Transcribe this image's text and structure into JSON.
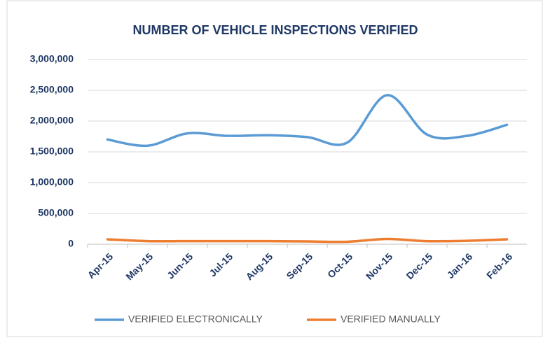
{
  "chart_data": {
    "type": "line",
    "title": "NUMBER OF VEHICLE INSPECTIONS VERIFIED",
    "categories": [
      "Apr-15",
      "May-15",
      "Jun-15",
      "Jul-15",
      "Aug-15",
      "Sep-15",
      "Oct-15",
      "Nov-15",
      "Dec-15",
      "Jan-16",
      "Feb-16"
    ],
    "series": [
      {
        "name": "VERIFIED ELECTRONICALLY",
        "color": "#5b9bd5",
        "values": [
          1700000,
          1600000,
          1800000,
          1760000,
          1770000,
          1740000,
          1650000,
          2420000,
          1780000,
          1760000,
          1940000
        ]
      },
      {
        "name": "VERIFIED MANUALLY",
        "color": "#ed7d31",
        "values": [
          80000,
          50000,
          50000,
          50000,
          50000,
          45000,
          40000,
          85000,
          50000,
          55000,
          80000
        ]
      }
    ],
    "ylim": [
      0,
      3000000
    ],
    "yticks": [
      0,
      {
        "value": 500000,
        "label": "500,000"
      },
      {
        "value": 1000000,
        "label": "1,000,000"
      },
      {
        "value": 1500000,
        "label": "1,500,000"
      },
      {
        "value": 2000000,
        "label": "2,000,000"
      },
      {
        "value": 2500000,
        "label": "2,500,000"
      },
      {
        "value": 3000000,
        "label": "3,000,000"
      }
    ],
    "grid": true,
    "smooth": true,
    "legend": "bottom"
  }
}
